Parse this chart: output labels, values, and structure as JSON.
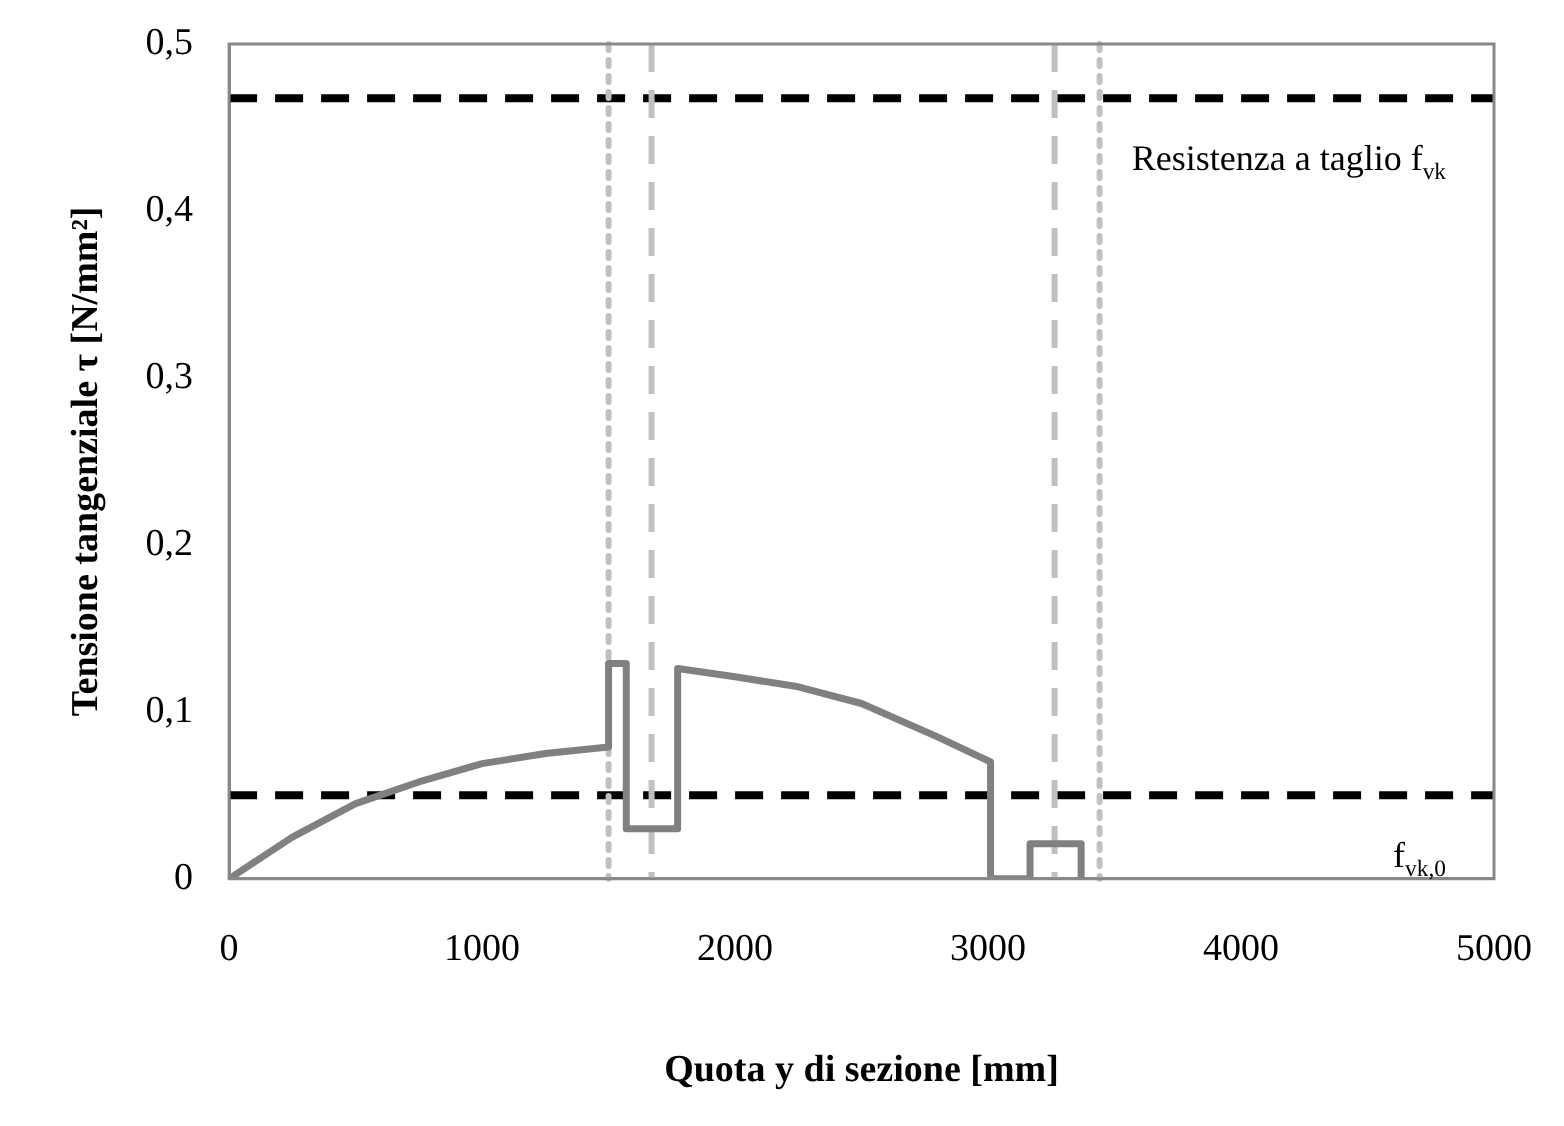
{
  "chart_data": {
    "type": "line",
    "xlabel": "Quota y di sezione [mm]",
    "ylabel": "Tensione tangenziale τ [N/mm²]",
    "xlim": [
      0,
      5000
    ],
    "xticks": [
      0,
      1000,
      2000,
      3000,
      4000,
      5000
    ],
    "ylim": [
      0,
      0.5
    ],
    "yticks": [
      0,
      {
        "value": 0.1,
        "label": "0,1"
      },
      {
        "value": 0.2,
        "label": "0,2"
      },
      {
        "value": 0.3,
        "label": "0,3"
      },
      {
        "value": 0.4,
        "label": "0,4"
      },
      {
        "value": 0.5,
        "label": "0,5"
      }
    ],
    "series": [
      {
        "color": "#808080",
        "x": [
          0,
          250,
          500,
          750,
          1000,
          1250,
          1500,
          1500,
          1570,
          1570,
          1773,
          1773,
          2000,
          2250,
          2500,
          2800,
          3010,
          3010,
          3166,
          3166,
          3368,
          3368
        ],
        "values": [
          0,
          0.025,
          0.045,
          0.058,
          0.069,
          0.075,
          0.079,
          0.129,
          0.129,
          0.03,
          0.03,
          0.126,
          0.121,
          0.115,
          0.105,
          0.085,
          0.07,
          0,
          0,
          0.021,
          0.021,
          0
        ]
      }
    ],
    "ref_lines": [
      {
        "axis": "y",
        "value": 0.4675,
        "label": "Resistenza a taglio f$_{vk}$",
        "color": "#000000",
        "line_style": "dashed"
      },
      {
        "axis": "y",
        "value": 0.05,
        "label": "f$_{vk,0}$",
        "color": "#000000",
        "line_style": "dashed"
      },
      {
        "axis": "x",
        "value": 1500,
        "color": "#c0c0c0",
        "line_style": "dotted"
      },
      {
        "axis": "x",
        "value": 1670,
        "color": "#c0c0c0",
        "line_style": "dashed"
      },
      {
        "axis": "x",
        "value": 3263,
        "color": "#c0c0c0",
        "line_style": "dashed"
      },
      {
        "axis": "x",
        "value": 3441,
        "color": "#c0c0c0",
        "line_style": "dotted"
      }
    ],
    "grid": false,
    "legend": false,
    "marker": "none",
    "line_style": "solid"
  }
}
